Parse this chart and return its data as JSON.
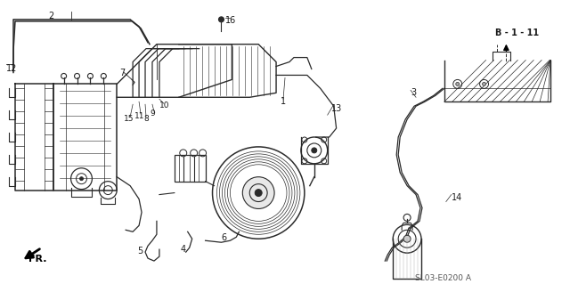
{
  "bg_color": "#ffffff",
  "line_color": "#2a2a2a",
  "part_number": "SL03-E0200 A",
  "diagram_note": "SL03-E0200 A"
}
